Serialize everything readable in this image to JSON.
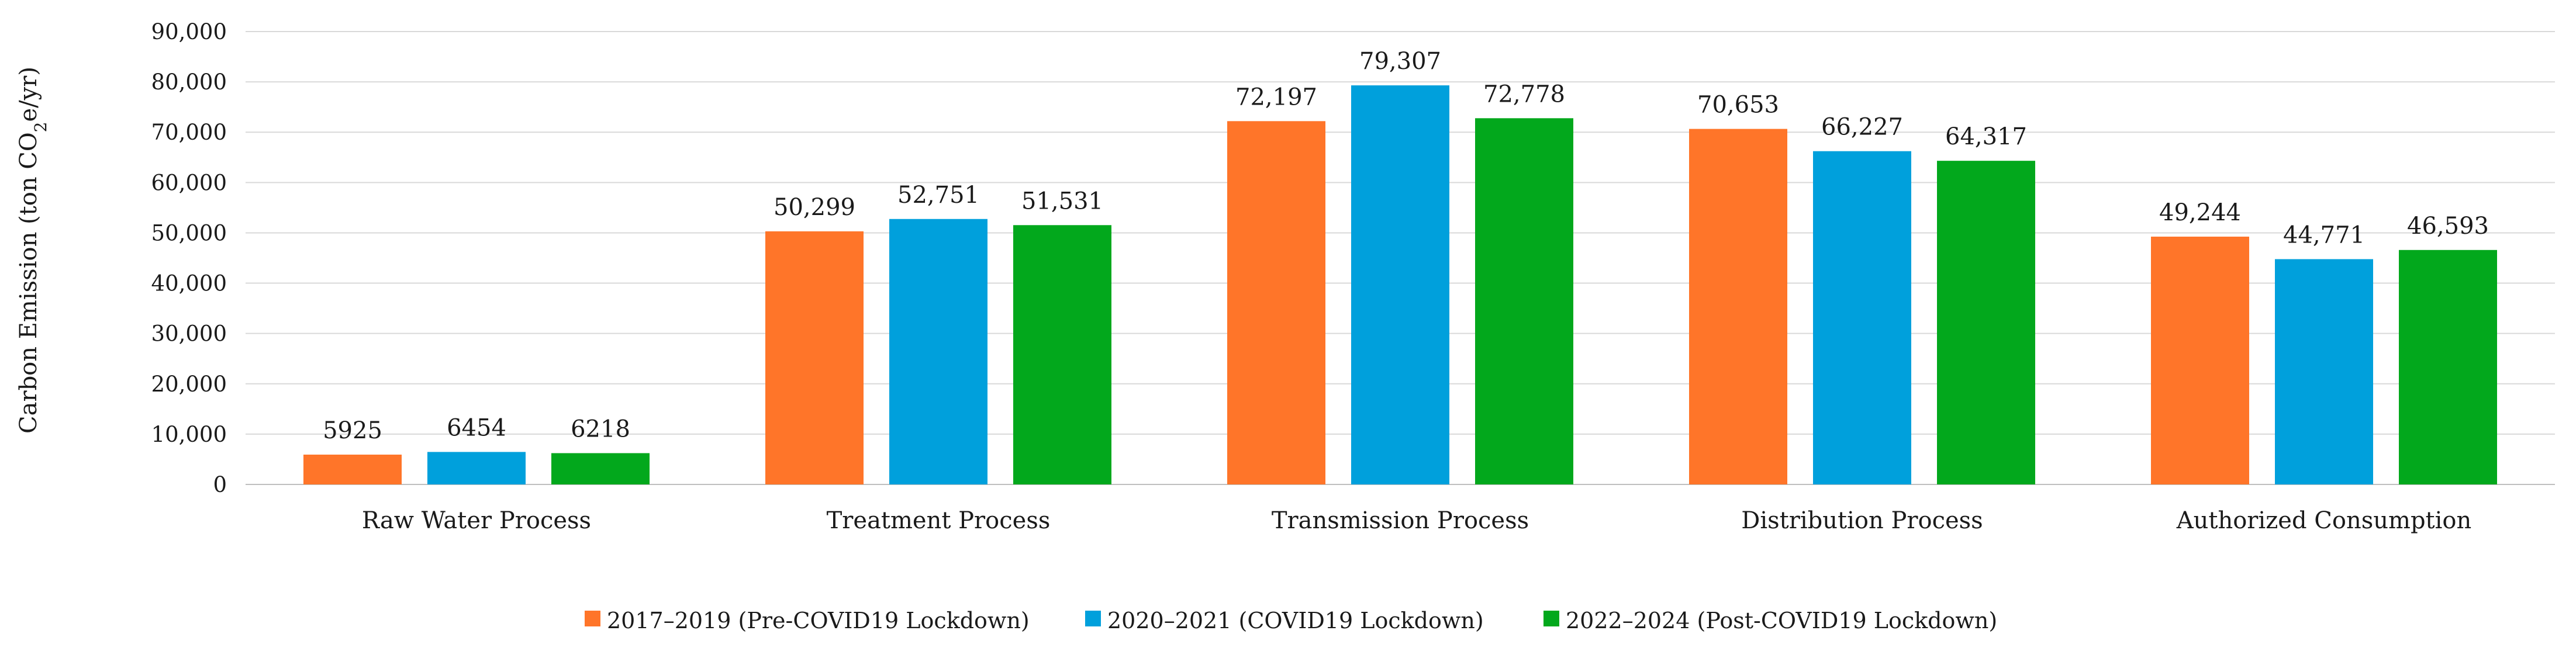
{
  "chart_data": {
    "type": "bar",
    "title": "",
    "ylabel": "Carbon Emission (ton CO2e/yr)",
    "ylabel_parts": {
      "prefix": "Carbon Emission (ton CO",
      "sub": "2",
      "suffix": "e/yr)"
    },
    "xlabel": "",
    "ylim": [
      0,
      90000
    ],
    "yticks": [
      0,
      10000,
      20000,
      30000,
      40000,
      50000,
      60000,
      70000,
      80000,
      90000
    ],
    "ytick_labels": [
      "0",
      "10,000",
      "20,000",
      "30,000",
      "40,000",
      "50,000",
      "60,000",
      "70,000",
      "80,000",
      "90,000"
    ],
    "grid": true,
    "legend_position": "bottom",
    "categories": [
      "Raw Water Process",
      "Treatment Process",
      "Transmission Process",
      "Distribution  Process",
      "Authorized Consumption"
    ],
    "series": [
      {
        "name": "2017–2019 (Pre-COVID19 Lockdown)",
        "color": "#FF7529",
        "values": [
          5925,
          50299,
          72197,
          70653,
          49244
        ],
        "labels": [
          "5925",
          "50,299",
          "72,197",
          "70,653",
          "49,244"
        ]
      },
      {
        "name": "2020–2021  (COVID19 Lockdown)",
        "color": "#00A0DC",
        "values": [
          6454,
          52751,
          79307,
          66227,
          44771
        ],
        "labels": [
          "6454",
          "52,751",
          "79,307",
          "66,227",
          "44,771"
        ]
      },
      {
        "name": "2022–2024  (Post-COVID19 Lockdown)",
        "color": "#02A81C",
        "values": [
          6218,
          51531,
          72778,
          64317,
          46593
        ],
        "labels": [
          "6218",
          "51,531",
          "72,778",
          "64,317",
          "46,593"
        ]
      }
    ]
  }
}
